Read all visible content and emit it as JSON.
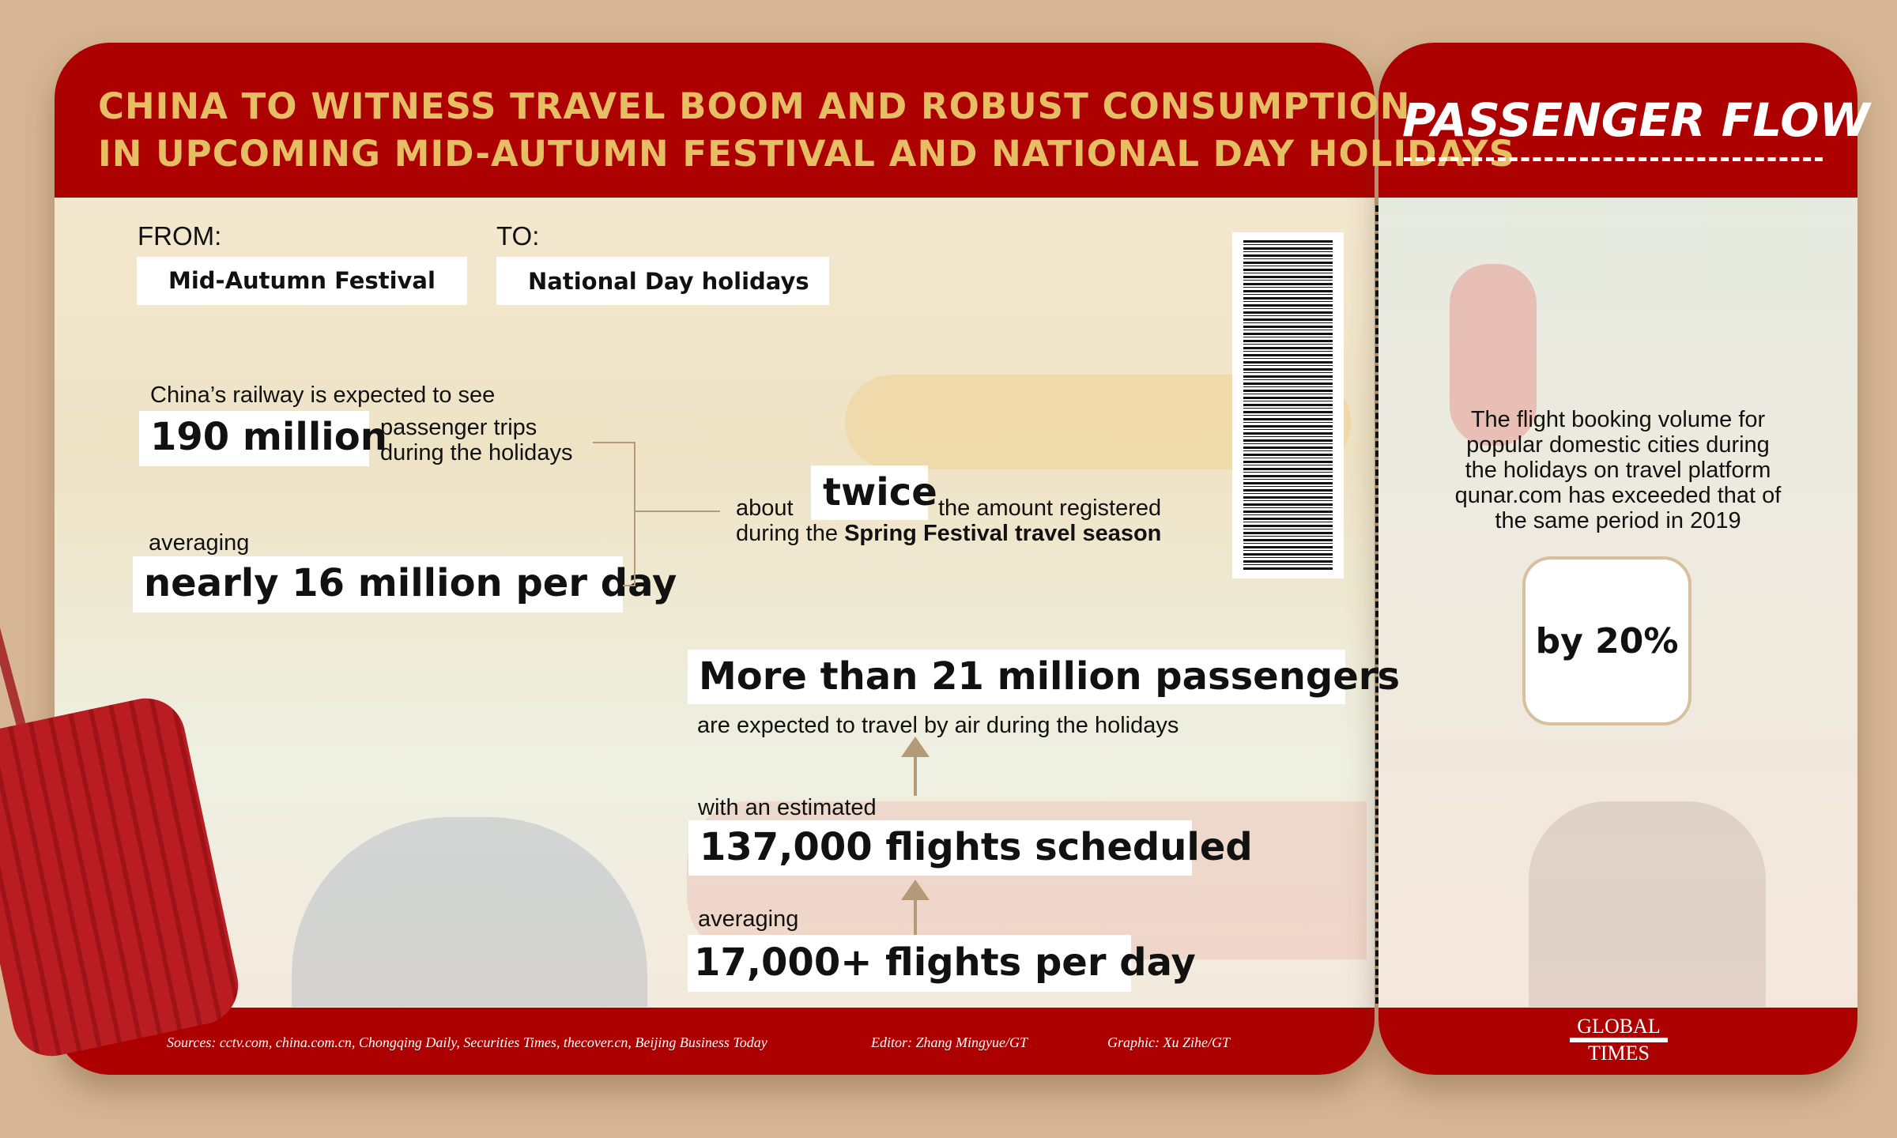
{
  "header": {
    "title_line1": "CHINA TO WITNESS TRAVEL BOOM AND ROBUST CONSUMPTION",
    "title_line2": "IN UPCOMING MID-AUTUMN FESTIVAL AND NATIONAL DAY HOLIDAYS"
  },
  "ticket": {
    "from_label": "FROM:",
    "from_value": "Mid-Autumn Festival",
    "to_label": "TO:",
    "to_value": "National Day holidays"
  },
  "rail": {
    "intro": "China’s railway is expected to see",
    "trips": "190 million",
    "trips_desc1": "passenger trips",
    "trips_desc2": "during the holidays",
    "avg_label": "averaging",
    "avg_value": "nearly 16 million per day",
    "about": "about",
    "twice": "twice",
    "amount": "the amount registered",
    "during": "during the",
    "spring": "Spring Festival travel season"
  },
  "air": {
    "passengers": "More than 21 million passengers",
    "passengers_desc": "are expected to travel by air during the holidays",
    "est_label": "with an estimated",
    "flights": "137,000 flights scheduled",
    "avg_label": "averaging",
    "avg_value": "17,000+ flights per day"
  },
  "side": {
    "title": "PASSENGER FLOW",
    "paragraph": [
      "The flight booking volume for",
      "popular domestic cities during",
      "the holidays on travel platform",
      "qunar.com has exceeded that of",
      "the same period in 2019"
    ],
    "badge": "by 20%"
  },
  "footer": {
    "sources": "Sources: cctv.com, china.com.cn, Chongqing Daily, Securities Times, thecover.cn, Beijing Business Today",
    "editor": "Editor: Zhang Mingyue/GT",
    "graphic": "Graphic: Xu Zihe/GT",
    "logo_line1": "GLOBAL",
    "logo_line2": "TIMES"
  },
  "colors": {
    "red": "#ad0000",
    "gold": "#e6be63",
    "background": "#d6b694"
  }
}
